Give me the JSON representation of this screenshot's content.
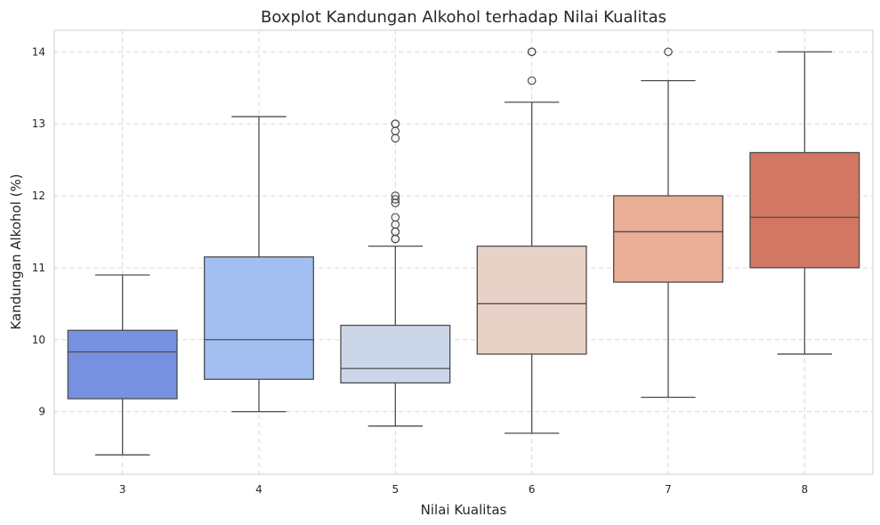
{
  "chart_data": {
    "type": "boxplot",
    "title": "Boxplot Kandungan Alkohol terhadap Nilai Kualitas",
    "xlabel": "Nilai Kualitas",
    "ylabel": "Kandungan Alkohol (%)",
    "ylim": [
      8.13,
      14.3
    ],
    "yticks": [
      9,
      10,
      11,
      12,
      13,
      14
    ],
    "grid": true,
    "grid_style": "dashed",
    "categories": [
      "3",
      "4",
      "5",
      "6",
      "7",
      "8"
    ],
    "boxes": [
      {
        "category": "3",
        "whisker_low": 8.4,
        "q1": 9.18,
        "median": 9.83,
        "q3": 10.13,
        "whisker_high": 10.9,
        "outliers": [],
        "color": "#7691e0"
      },
      {
        "category": "4",
        "whisker_low": 9.0,
        "q1": 9.45,
        "median": 10.0,
        "q3": 11.15,
        "whisker_high": 13.1,
        "outliers": [],
        "color": "#a3bff2"
      },
      {
        "category": "5",
        "whisker_low": 8.8,
        "q1": 9.4,
        "median": 9.6,
        "q3": 10.2,
        "whisker_high": 11.3,
        "outliers": [
          11.4,
          11.4,
          11.5,
          11.5,
          11.6,
          11.7,
          11.9,
          11.95,
          12.0,
          12.8,
          12.9,
          13.0,
          13.0
        ],
        "color": "#cbd7e9"
      },
      {
        "category": "6",
        "whisker_low": 8.7,
        "q1": 9.8,
        "median": 10.5,
        "q3": 11.3,
        "whisker_high": 13.3,
        "outliers": [
          13.6,
          14.0,
          14.0
        ],
        "color": "#e8d1c6"
      },
      {
        "category": "7",
        "whisker_low": 9.2,
        "q1": 10.8,
        "median": 11.5,
        "q3": 12.0,
        "whisker_high": 13.6,
        "outliers": [
          14.0
        ],
        "color": "#eaad95"
      },
      {
        "category": "8",
        "whisker_low": 9.8,
        "q1": 11.0,
        "median": 11.7,
        "q3": 12.6,
        "whisker_high": 14.0,
        "outliers": [],
        "color": "#d27764"
      }
    ],
    "line_color": "#4d4d4d",
    "grid_color": "#d9d9d9",
    "spine_color": "#cccccc"
  }
}
